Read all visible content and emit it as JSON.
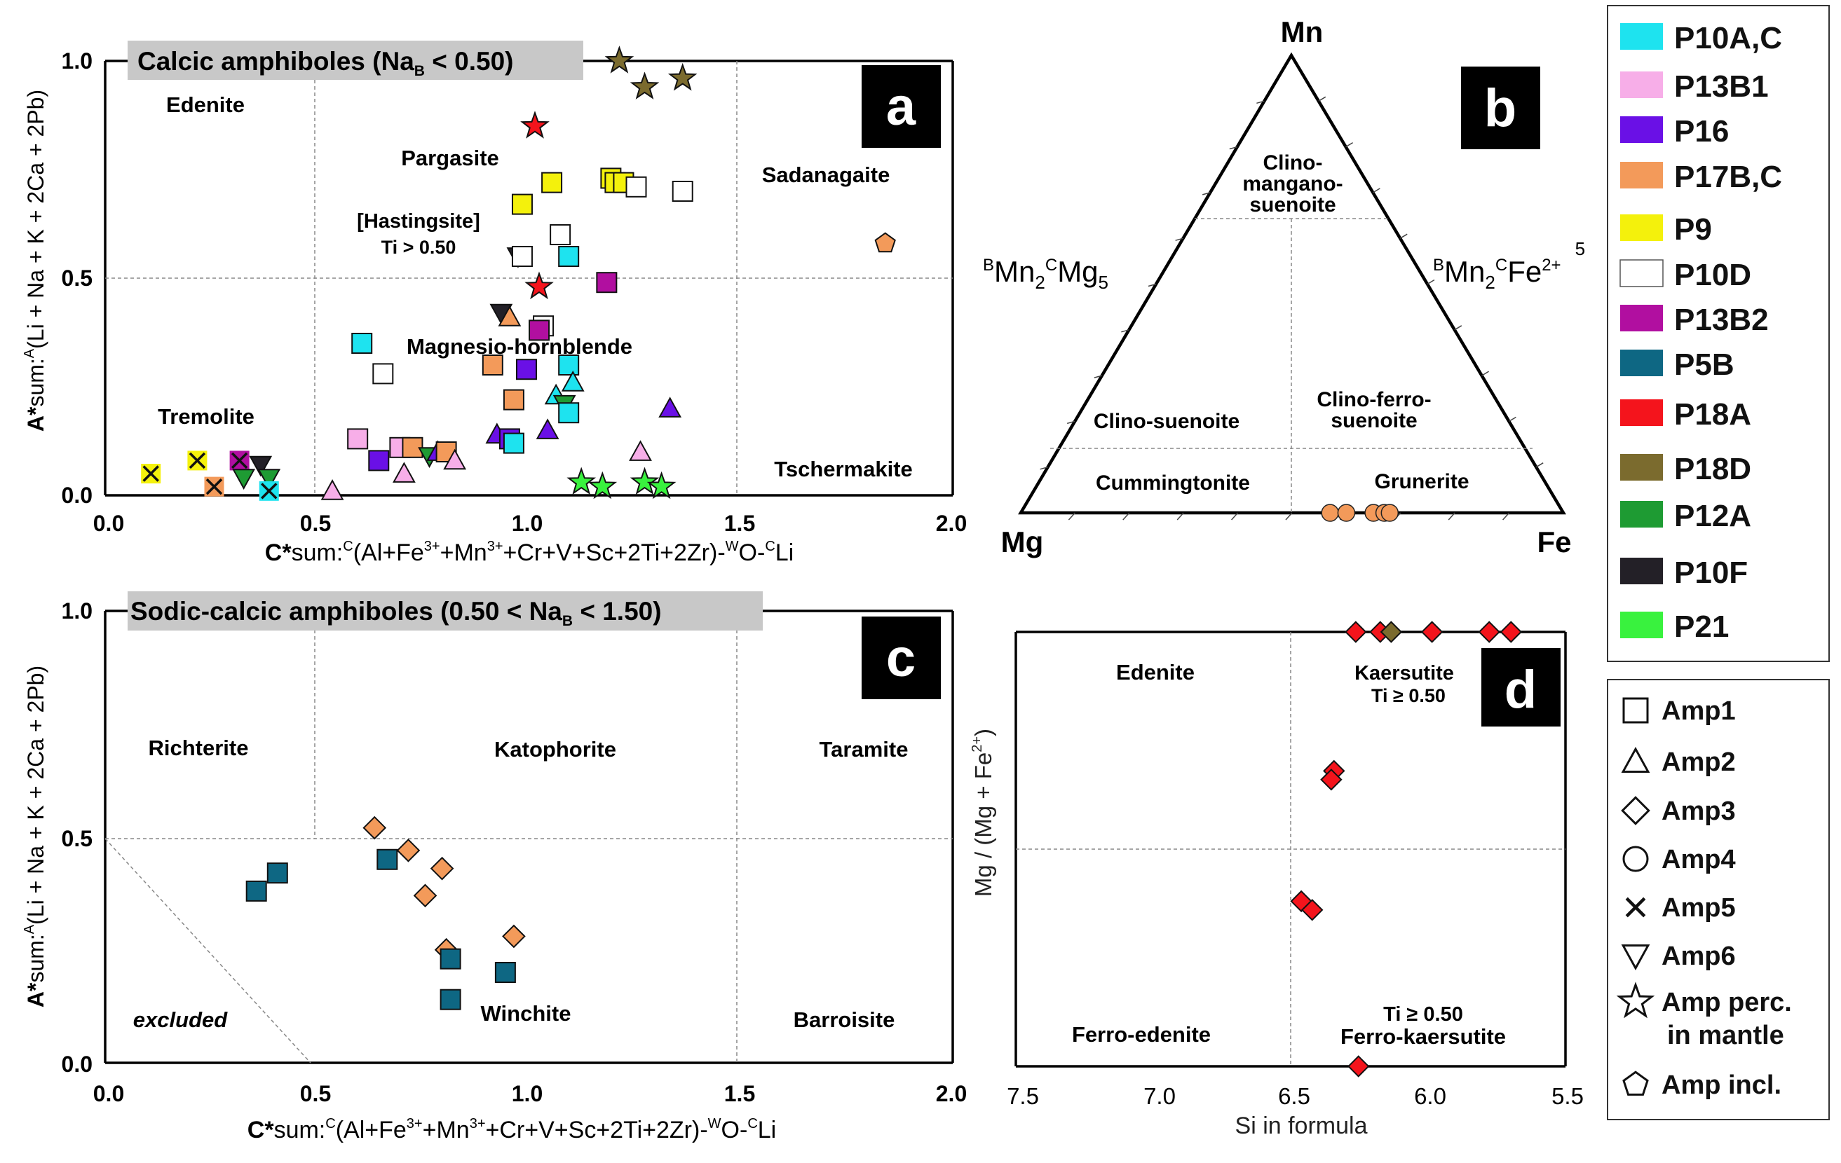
{
  "samples": {
    "P10AC": {
      "label": "P10A,C",
      "color": "#1ee3ef"
    },
    "P13B1": {
      "label": "P13B1",
      "color": "#f7aee8"
    },
    "P16": {
      "label": "P16",
      "color": "#6a10e6"
    },
    "P17BC": {
      "label": "P17B,C",
      "color": "#f39a5a"
    },
    "P9": {
      "label": "P9",
      "color": "#f4f10c"
    },
    "P10D": {
      "label": "P10D",
      "color": "#ffffff"
    },
    "P13B2": {
      "label": "P13B2",
      "color": "#b10fa0"
    },
    "P5B": {
      "label": "P5B",
      "color": "#0e6783"
    },
    "P18A": {
      "label": "P18A",
      "color": "#f4141c"
    },
    "P18D": {
      "label": "P18D",
      "color": "#7b6b2e"
    },
    "P12A": {
      "label": "P12A",
      "color": "#1e9b33"
    },
    "P10F": {
      "label": "P10F",
      "color": "#232027"
    },
    "P21": {
      "label": "P21",
      "color": "#39f23e"
    }
  },
  "legend_samples_order": [
    "P10AC",
    "P13B1",
    "P16",
    "P17BC",
    "P9",
    "P10D",
    "P13B2",
    "P5B",
    "P18A",
    "P18D",
    "P12A",
    "P10F",
    "P21"
  ],
  "legend_shapes": [
    {
      "shape": "square",
      "label": "Amp1"
    },
    {
      "shape": "triangle",
      "label": "Amp2"
    },
    {
      "shape": "diamond",
      "label": "Amp3"
    },
    {
      "shape": "circle",
      "label": "Amp4"
    },
    {
      "shape": "cross",
      "label": "Amp5"
    },
    {
      "shape": "invtri",
      "label": "Amp6"
    },
    {
      "shape": "star",
      "label": "Amp perc.",
      "label2": "in mantle"
    },
    {
      "shape": "pentagon",
      "label": "Amp incl."
    }
  ],
  "chart_data": [
    {
      "panel": "a",
      "type": "scatter",
      "title": "Calcic amphiboles (Na",
      "title_sub": "B",
      "title_end": " < 0.50)",
      "xlabel": {
        "bold": "C*",
        "pre": "sum:",
        "sup1": "C",
        "mid": "(Al+Fe",
        "sup2": "3+",
        "mid2": "+Mn",
        "sup3": "3+",
        "mid3": "+Cr+V+Sc+2Ti+2Zr)-",
        "sup4": "W",
        "mid4": "O-",
        "sup5": "C",
        "end": "Li"
      },
      "ylabel": {
        "bold": "A*",
        "pre": "sum:",
        "sup": "A",
        "end": "(Li + Na + K + 2Ca + 2Pb)"
      },
      "xlim": [
        0,
        2
      ],
      "ylim": [
        0,
        1
      ],
      "xticks": [
        "0.0",
        "0.5",
        "1.0",
        "1.5",
        "2.0"
      ],
      "yticks": [
        "0.0",
        "0.5",
        "1.0"
      ],
      "fields": [
        "Edenite",
        "Pargasite",
        "[Hastingsite]",
        "Ti > 0.50",
        "Sadanagaite",
        "Magnesio-hornblende",
        "Tremolite",
        "Tschermakite"
      ],
      "points": [
        {
          "x": 0.1,
          "y": 0.05,
          "shape": "cross",
          "sample": "P9"
        },
        {
          "x": 0.21,
          "y": 0.08,
          "shape": "cross",
          "sample": "P9"
        },
        {
          "x": 0.25,
          "y": 0.02,
          "shape": "cross",
          "sample": "P17BC"
        },
        {
          "x": 0.31,
          "y": 0.08,
          "shape": "cross",
          "sample": "P13B2"
        },
        {
          "x": 0.32,
          "y": 0.04,
          "shape": "invtri",
          "sample": "P12A"
        },
        {
          "x": 0.36,
          "y": 0.07,
          "shape": "invtri",
          "sample": "P10F"
        },
        {
          "x": 0.38,
          "y": 0.04,
          "shape": "invtri",
          "sample": "P12A"
        },
        {
          "x": 0.38,
          "y": 0.01,
          "shape": "cross",
          "sample": "P10AC"
        },
        {
          "x": 0.53,
          "y": 0.01,
          "shape": "triangle",
          "sample": "P13B1"
        },
        {
          "x": 0.59,
          "y": 0.13,
          "shape": "square",
          "sample": "P13B1"
        },
        {
          "x": 0.6,
          "y": 0.35,
          "shape": "square",
          "sample": "P10AC"
        },
        {
          "x": 0.64,
          "y": 0.08,
          "shape": "square",
          "sample": "P16"
        },
        {
          "x": 0.65,
          "y": 0.28,
          "shape": "square",
          "sample": "P10D"
        },
        {
          "x": 0.69,
          "y": 0.11,
          "shape": "square",
          "sample": "P13B1"
        },
        {
          "x": 0.7,
          "y": 0.05,
          "shape": "triangle",
          "sample": "P13B1"
        },
        {
          "x": 0.72,
          "y": 0.11,
          "shape": "square",
          "sample": "P17BC"
        },
        {
          "x": 0.76,
          "y": 0.09,
          "shape": "invtri",
          "sample": "P12A"
        },
        {
          "x": 0.78,
          "y": 0.1,
          "shape": "triangle",
          "sample": "P16"
        },
        {
          "x": 0.8,
          "y": 0.1,
          "shape": "square",
          "sample": "P17BC"
        },
        {
          "x": 0.82,
          "y": 0.08,
          "shape": "triangle",
          "sample": "P13B1"
        },
        {
          "x": 0.91,
          "y": 0.3,
          "shape": "square",
          "sample": "P17BC"
        },
        {
          "x": 0.92,
          "y": 0.14,
          "shape": "triangle",
          "sample": "P16"
        },
        {
          "x": 0.93,
          "y": 0.42,
          "shape": "invtri",
          "sample": "P10F"
        },
        {
          "x": 0.95,
          "y": 0.41,
          "shape": "triangle",
          "sample": "P17BC"
        },
        {
          "x": 0.95,
          "y": 0.13,
          "shape": "square",
          "sample": "P16"
        },
        {
          "x": 0.96,
          "y": 0.22,
          "shape": "square",
          "sample": "P17BC"
        },
        {
          "x": 0.96,
          "y": 0.12,
          "shape": "square",
          "sample": "P10AC"
        },
        {
          "x": 0.98,
          "y": 0.67,
          "shape": "square",
          "sample": "P9"
        },
        {
          "x": 0.97,
          "y": 0.55,
          "shape": "invtri",
          "sample": "P10F"
        },
        {
          "x": 0.98,
          "y": 0.55,
          "shape": "square",
          "sample": "P10D"
        },
        {
          "x": 0.99,
          "y": 0.29,
          "shape": "square",
          "sample": "P16"
        },
        {
          "x": 1.01,
          "y": 0.85,
          "shape": "star",
          "sample": "P18A"
        },
        {
          "x": 1.02,
          "y": 0.48,
          "shape": "star",
          "sample": "P18A"
        },
        {
          "x": 1.03,
          "y": 0.39,
          "shape": "square",
          "sample": "P10D"
        },
        {
          "x": 1.02,
          "y": 0.38,
          "shape": "square",
          "sample": "P13B2"
        },
        {
          "x": 1.04,
          "y": 0.15,
          "shape": "triangle",
          "sample": "P16"
        },
        {
          "x": 1.05,
          "y": 0.72,
          "shape": "square",
          "sample": "P9"
        },
        {
          "x": 1.06,
          "y": 0.23,
          "shape": "triangle",
          "sample": "P10AC"
        },
        {
          "x": 1.07,
          "y": 0.6,
          "shape": "square",
          "sample": "P10D"
        },
        {
          "x": 1.08,
          "y": 0.21,
          "shape": "invtri",
          "sample": "P12A"
        },
        {
          "x": 1.09,
          "y": 0.55,
          "shape": "square",
          "sample": "P10AC"
        },
        {
          "x": 1.09,
          "y": 0.3,
          "shape": "square",
          "sample": "P10AC"
        },
        {
          "x": 1.09,
          "y": 0.19,
          "shape": "square",
          "sample": "P10AC"
        },
        {
          "x": 1.1,
          "y": 0.26,
          "shape": "triangle",
          "sample": "P10AC"
        },
        {
          "x": 1.12,
          "y": 0.03,
          "shape": "star",
          "sample": "P21"
        },
        {
          "x": 1.17,
          "y": 0.02,
          "shape": "star",
          "sample": "P21"
        },
        {
          "x": 1.18,
          "y": 0.49,
          "shape": "square",
          "sample": "P13B2"
        },
        {
          "x": 1.19,
          "y": 0.73,
          "shape": "square",
          "sample": "P9"
        },
        {
          "x": 1.2,
          "y": 0.72,
          "shape": "square",
          "sample": "P9"
        },
        {
          "x": 1.21,
          "y": 1.0,
          "shape": "star",
          "sample": "P18D"
        },
        {
          "x": 1.22,
          "y": 0.72,
          "shape": "square",
          "sample": "P9"
        },
        {
          "x": 1.25,
          "y": 0.71,
          "shape": "square",
          "sample": "P10D"
        },
        {
          "x": 1.26,
          "y": 0.1,
          "shape": "triangle",
          "sample": "P13B1"
        },
        {
          "x": 1.27,
          "y": 0.94,
          "shape": "star",
          "sample": "P18D"
        },
        {
          "x": 1.27,
          "y": 0.03,
          "shape": "star",
          "sample": "P21"
        },
        {
          "x": 1.31,
          "y": 0.02,
          "shape": "star",
          "sample": "P21"
        },
        {
          "x": 1.33,
          "y": 0.2,
          "shape": "triangle",
          "sample": "P16"
        },
        {
          "x": 1.36,
          "y": 0.96,
          "shape": "star",
          "sample": "P18D"
        },
        {
          "x": 1.36,
          "y": 0.7,
          "shape": "square",
          "sample": "P10D"
        },
        {
          "x": 1.84,
          "y": 0.58,
          "shape": "pentagon",
          "sample": "P17BC"
        }
      ]
    },
    {
      "panel": "b",
      "type": "ternary",
      "vertices": [
        "Mn",
        "Mg",
        "Fe"
      ],
      "edge_left": {
        "sup1": "B",
        "t1": "Mn",
        "sub1": "2",
        "sup2": "C",
        "t2": "Mg",
        "sub2": "5"
      },
      "edge_right": {
        "sup1": "B",
        "t1": "Mn",
        "sub1": "2",
        "sup2": "C",
        "t2": "Fe",
        "sup3": "2+",
        "sub2": "5"
      },
      "fields": [
        "Clino-",
        "mangano-",
        "suenoite",
        "Clino-suenoite",
        "Clino-ferro-",
        "suenoite",
        "Cummingtonite",
        "Grunerite"
      ],
      "points": [
        {
          "fe_fraction": 0.57,
          "mn_fraction": 0.0,
          "shape": "circle",
          "sample": "P17BC"
        },
        {
          "fe_fraction": 0.6,
          "mn_fraction": 0.0,
          "shape": "circle",
          "sample": "P17BC"
        },
        {
          "fe_fraction": 0.65,
          "mn_fraction": 0.0,
          "shape": "circle",
          "sample": "P17BC"
        },
        {
          "fe_fraction": 0.67,
          "mn_fraction": 0.0,
          "shape": "circle",
          "sample": "P17BC"
        },
        {
          "fe_fraction": 0.68,
          "mn_fraction": 0.0,
          "shape": "circle",
          "sample": "P17BC"
        }
      ]
    },
    {
      "panel": "c",
      "type": "scatter",
      "title": "Sodic-calcic amphiboles  (0.50 < Na",
      "title_sub": "B",
      "title_end": " < 1.50)",
      "xlabel": {
        "bold": "C*",
        "pre": "sum:",
        "sup1": "C",
        "mid": "(Al+Fe",
        "sup2": "3+",
        "mid2": "+Mn",
        "sup3": "3+",
        "mid3": "+Cr+V+Sc+2Ti+2Zr)-",
        "sup4": "W",
        "mid4": "O-",
        "sup5": "C",
        "end": "Li"
      },
      "ylabel": {
        "bold": "A*",
        "pre": "sum:",
        "sup": "A",
        "end": "(Li + Na + K + 2Ca + 2Pb)"
      },
      "xlim": [
        0,
        2
      ],
      "ylim": [
        0,
        1
      ],
      "xticks": [
        "0.0",
        "0.5",
        "1.0",
        "1.5",
        "2.0"
      ],
      "yticks": [
        "0.0",
        "0.5",
        "1.0"
      ],
      "fields": [
        "Richterite",
        "Katophorite",
        "Taramite",
        "excluded",
        "Winchite",
        "Barroisite"
      ],
      "points": [
        {
          "x": 0.35,
          "y": 0.38,
          "shape": "square",
          "sample": "P5B"
        },
        {
          "x": 0.4,
          "y": 0.42,
          "shape": "square",
          "sample": "P5B"
        },
        {
          "x": 0.63,
          "y": 0.52,
          "shape": "diamond",
          "sample": "P17BC"
        },
        {
          "x": 0.66,
          "y": 0.45,
          "shape": "square",
          "sample": "P5B"
        },
        {
          "x": 0.71,
          "y": 0.47,
          "shape": "diamond",
          "sample": "P17BC"
        },
        {
          "x": 0.75,
          "y": 0.37,
          "shape": "diamond",
          "sample": "P17BC"
        },
        {
          "x": 0.79,
          "y": 0.43,
          "shape": "diamond",
          "sample": "P17BC"
        },
        {
          "x": 0.8,
          "y": 0.25,
          "shape": "diamond",
          "sample": "P17BC"
        },
        {
          "x": 0.81,
          "y": 0.23,
          "shape": "square",
          "sample": "P5B"
        },
        {
          "x": 0.81,
          "y": 0.14,
          "shape": "square",
          "sample": "P5B"
        },
        {
          "x": 0.94,
          "y": 0.2,
          "shape": "square",
          "sample": "P5B"
        },
        {
          "x": 0.96,
          "y": 0.28,
          "shape": "diamond",
          "sample": "P17BC"
        }
      ]
    },
    {
      "panel": "d",
      "type": "scatter",
      "xlabel": "Si in formula",
      "ylabel": {
        "t1": "Mg / (Mg + Fe",
        "sup": "2+",
        "t2": ")"
      },
      "xlim": [
        7.5,
        5.5
      ],
      "ylim": [
        0,
        1
      ],
      "xticks": [
        "7.5",
        "7.0",
        "6.5",
        "6.0",
        "5.5"
      ],
      "fields": [
        "Edenite",
        "Kaersutite",
        "Ti ≥ 0.50",
        "Ferro-edenite",
        "Ti ≥ 0.50",
        "Ferro-kaersutite"
      ],
      "points": [
        {
          "x": 6.27,
          "y": 1.0,
          "shape": "diamond",
          "sample": "P18A"
        },
        {
          "x": 6.18,
          "y": 1.0,
          "shape": "diamond",
          "sample": "P18A"
        },
        {
          "x": 6.14,
          "y": 1.0,
          "shape": "diamond",
          "sample": "P18D"
        },
        {
          "x": 5.99,
          "y": 1.0,
          "shape": "diamond",
          "sample": "P18A"
        },
        {
          "x": 5.78,
          "y": 1.0,
          "shape": "diamond",
          "sample": "P18A"
        },
        {
          "x": 5.7,
          "y": 1.0,
          "shape": "diamond",
          "sample": "P18A"
        },
        {
          "x": 6.35,
          "y": 0.68,
          "shape": "diamond",
          "sample": "P18A"
        },
        {
          "x": 6.36,
          "y": 0.66,
          "shape": "diamond",
          "sample": "P18A"
        },
        {
          "x": 6.47,
          "y": 0.38,
          "shape": "diamond",
          "sample": "P18A"
        },
        {
          "x": 6.43,
          "y": 0.36,
          "shape": "diamond",
          "sample": "P18A"
        },
        {
          "x": 6.26,
          "y": 0.0,
          "shape": "diamond",
          "sample": "P18A"
        }
      ]
    }
  ],
  "panel_labels": [
    "a",
    "b",
    "c",
    "d"
  ]
}
